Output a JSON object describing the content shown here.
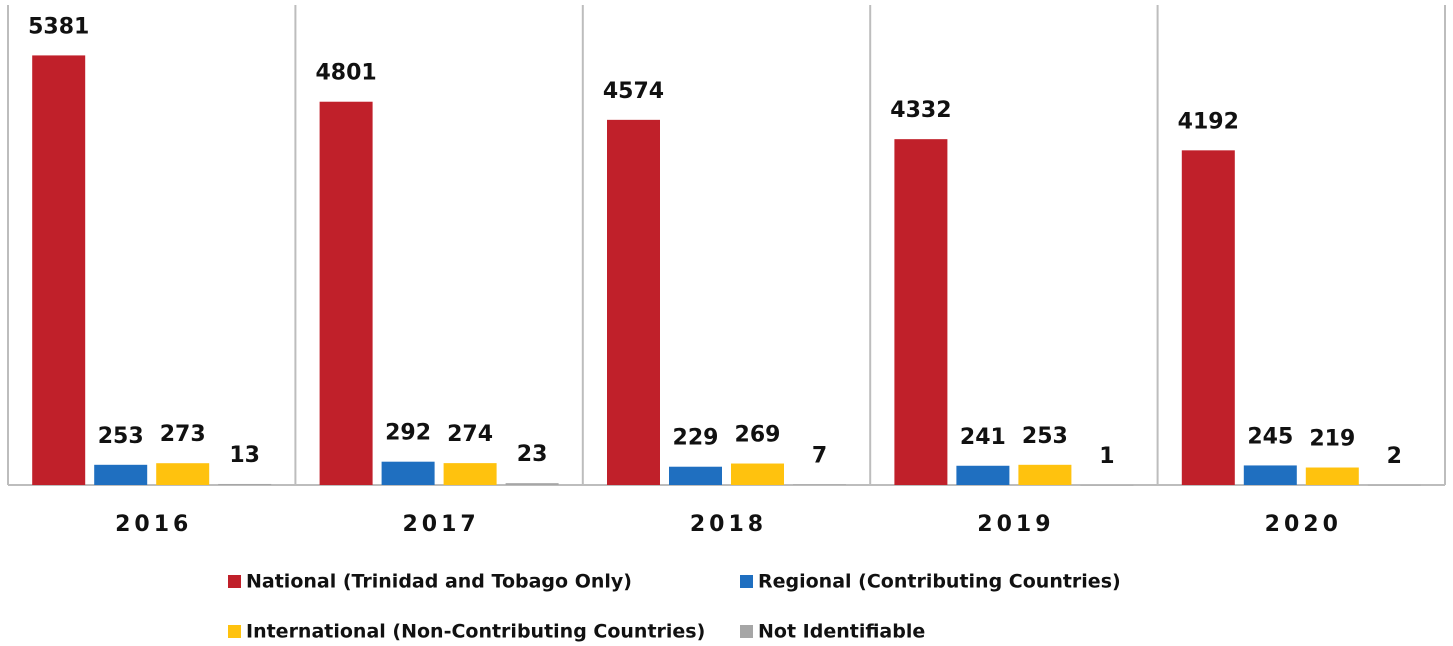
{
  "chart_data": {
    "type": "bar",
    "categories": [
      "2016",
      "2017",
      "2018",
      "2019",
      "2020"
    ],
    "series": [
      {
        "name": "National (Trinidad and Tobago Only)",
        "color": "#c0202a",
        "values": [
          5381,
          4801,
          4574,
          4332,
          4192
        ]
      },
      {
        "name": "Regional (Contributing Countries)",
        "color": "#1f6fc0",
        "values": [
          253,
          292,
          229,
          241,
          245
        ]
      },
      {
        "name": "International (Non-Contributing Countries)",
        "color": "#ffc20e",
        "values": [
          273,
          274,
          269,
          253,
          219
        ]
      },
      {
        "name": "Not Identifiable",
        "color": "#a6a6a6",
        "values": [
          13,
          23,
          7,
          1,
          2
        ]
      }
    ],
    "ylim": [
      0,
      6000
    ],
    "legend": "bottom"
  }
}
